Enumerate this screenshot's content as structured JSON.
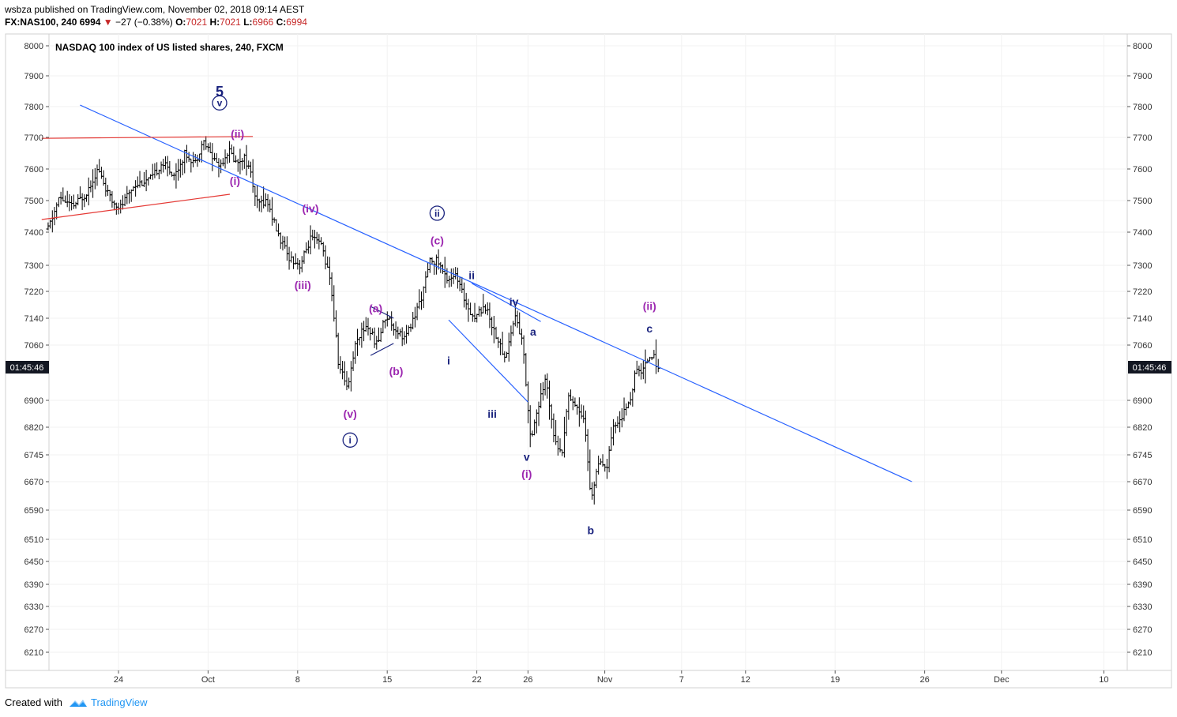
{
  "header": {
    "publisher_line": "wsbza published on TradingView.com, November 02, 2018 09:14 AEST",
    "symbol_interval": "FX:NAS100, 240",
    "last_price": "6994",
    "change": "−27 (−0.38%)",
    "open_label": "O:",
    "open_value": "7021",
    "high_label": "H:",
    "high_value": "7021",
    "low_label": "L:",
    "low_value": "6966",
    "close_label": "C:",
    "close_value": "6994"
  },
  "footer": {
    "created_with": "Created with",
    "brand": "TradingView"
  },
  "colors": {
    "bars": "#000000",
    "trendline": "#2962ff",
    "resistance": "#e53935",
    "wave_purple": "#9c27b0",
    "wave_navy": "#1a237e",
    "countdown_bg": "#131722",
    "grid": "#f2f2f2"
  },
  "chart_data": {
    "type": "ohlc",
    "title": "NASDAQ 100 index of US listed shares, 240, FXCM",
    "countdown_label": "01:45:46",
    "y_ticks": [
      6210,
      6270,
      6330,
      6390,
      6450,
      6510,
      6590,
      6670,
      6745,
      6820,
      6900,
      7060,
      7140,
      7220,
      7300,
      7400,
      7500,
      7600,
      7700,
      7800,
      7900,
      8000
    ],
    "ylim": [
      6180,
      8020
    ],
    "x_ticks": [
      {
        "label": "24",
        "d": 0
      },
      {
        "label": "Oct",
        "d": 7
      },
      {
        "label": "8",
        "d": 14
      },
      {
        "label": "15",
        "d": 21
      },
      {
        "label": "22",
        "d": 28
      },
      {
        "label": "26",
        "d": 32
      },
      {
        "label": "Nov",
        "d": 38
      },
      {
        "label": "7",
        "d": 44
      },
      {
        "label": "12",
        "d": 49
      },
      {
        "label": "19",
        "d": 56
      },
      {
        "label": "26",
        "d": 63
      },
      {
        "label": "Dec",
        "d": 69
      },
      {
        "label": "10",
        "d": 77
      }
    ],
    "x_axis_note": "x values are days since Sep 24, 2018",
    "price_path": [
      {
        "d": -5.5,
        "p": 7410
      },
      {
        "d": -4.6,
        "p": 7510
      },
      {
        "d": -3.6,
        "p": 7480
      },
      {
        "d": -2.6,
        "p": 7520
      },
      {
        "d": -1.6,
        "p": 7600
      },
      {
        "d": -0.6,
        "p": 7500
      },
      {
        "d": 0.2,
        "p": 7480
      },
      {
        "d": 1.2,
        "p": 7550
      },
      {
        "d": 2.6,
        "p": 7570
      },
      {
        "d": 3.4,
        "p": 7620
      },
      {
        "d": 4.4,
        "p": 7580
      },
      {
        "d": 5.2,
        "p": 7650
      },
      {
        "d": 6.0,
        "p": 7620
      },
      {
        "d": 6.6,
        "p": 7690
      },
      {
        "d": 7.3,
        "p": 7640
      },
      {
        "d": 7.9,
        "p": 7610
      },
      {
        "d": 8.6,
        "p": 7660
      },
      {
        "d": 9.2,
        "p": 7620
      },
      {
        "d": 9.8,
        "p": 7640
      },
      {
        "d": 10.3,
        "p": 7590
      },
      {
        "d": 10.8,
        "p": 7490
      },
      {
        "d": 11.6,
        "p": 7500
      },
      {
        "d": 12.4,
        "p": 7400
      },
      {
        "d": 13.2,
        "p": 7330
      },
      {
        "d": 14.2,
        "p": 7300
      },
      {
        "d": 15.0,
        "p": 7380
      },
      {
        "d": 15.9,
        "p": 7360
      },
      {
        "d": 16.6,
        "p": 7240
      },
      {
        "d": 17.2,
        "p": 7000
      },
      {
        "d": 17.9,
        "p": 6940
      },
      {
        "d": 18.6,
        "p": 7080
      },
      {
        "d": 19.4,
        "p": 7120
      },
      {
        "d": 20.2,
        "p": 7060
      },
      {
        "d": 20.9,
        "p": 7150
      },
      {
        "d": 21.6,
        "p": 7110
      },
      {
        "d": 22.4,
        "p": 7080
      },
      {
        "d": 23.1,
        "p": 7140
      },
      {
        "d": 23.8,
        "p": 7220
      },
      {
        "d": 24.4,
        "p": 7320
      },
      {
        "d": 25.0,
        "p": 7310
      },
      {
        "d": 25.6,
        "p": 7260
      },
      {
        "d": 26.3,
        "p": 7270
      },
      {
        "d": 27.0,
        "p": 7200
      },
      {
        "d": 27.8,
        "p": 7140
      },
      {
        "d": 28.6,
        "p": 7180
      },
      {
        "d": 29.4,
        "p": 7100
      },
      {
        "d": 30.2,
        "p": 7020
      },
      {
        "d": 31.0,
        "p": 7150
      },
      {
        "d": 31.6,
        "p": 7060
      },
      {
        "d": 32.2,
        "p": 6790
      },
      {
        "d": 32.8,
        "p": 6880
      },
      {
        "d": 33.4,
        "p": 6960
      },
      {
        "d": 34.0,
        "p": 6810
      },
      {
        "d": 34.6,
        "p": 6740
      },
      {
        "d": 35.2,
        "p": 6920
      },
      {
        "d": 35.8,
        "p": 6880
      },
      {
        "d": 36.4,
        "p": 6850
      },
      {
        "d": 36.9,
        "p": 6620
      },
      {
        "d": 37.5,
        "p": 6720
      },
      {
        "d": 38.1,
        "p": 6700
      },
      {
        "d": 38.7,
        "p": 6820
      },
      {
        "d": 39.3,
        "p": 6850
      },
      {
        "d": 39.9,
        "p": 6890
      },
      {
        "d": 40.4,
        "p": 6980
      },
      {
        "d": 41.0,
        "p": 6990
      },
      {
        "d": 41.6,
        "p": 7040
      },
      {
        "d": 42.2,
        "p": 6994
      }
    ],
    "drawings": [
      {
        "name": "long-downtrend-line",
        "color": "trendline",
        "from": {
          "d": -3.0,
          "p": 7805
        },
        "to": {
          "d": 62.0,
          "p": 6670
        }
      },
      {
        "name": "resistance-line-top",
        "color": "resistance",
        "from": {
          "d": -6.0,
          "p": 7697
        },
        "to": {
          "d": 10.5,
          "p": 7703
        }
      },
      {
        "name": "resistance-line-low",
        "color": "resistance",
        "from": {
          "d": -6.0,
          "p": 7440
        },
        "to": {
          "d": 8.7,
          "p": 7520
        }
      },
      {
        "name": "wedge-upper-line",
        "color": "trendline",
        "from": {
          "d": 27.6,
          "p": 7245
        },
        "to": {
          "d": 33.0,
          "p": 7130
        }
      },
      {
        "name": "wedge-lower-line",
        "color": "trendline",
        "from": {
          "d": 25.8,
          "p": 7135
        },
        "to": {
          "d": 32.0,
          "p": 6895
        }
      },
      {
        "name": "triangle-upper-line",
        "color": "wave_navy",
        "from": {
          "d": 19.7,
          "p": 7175
        },
        "to": {
          "d": 21.5,
          "p": 7140
        }
      },
      {
        "name": "triangle-lower-line",
        "color": "wave_navy",
        "from": {
          "d": 19.7,
          "p": 7030
        },
        "to": {
          "d": 21.5,
          "p": 7065
        }
      }
    ],
    "annotations": [
      {
        "text": "5",
        "d": 7.9,
        "p": 7850,
        "color": "wave_navy",
        "circled": false,
        "size": 18
      },
      {
        "text": "v",
        "d": 7.9,
        "p": 7812,
        "color": "wave_navy",
        "circled": true,
        "size": 12
      },
      {
        "text": "(ii)",
        "d": 9.3,
        "p": 7712,
        "color": "wave_purple",
        "circled": false,
        "size": 14
      },
      {
        "text": "(i)",
        "d": 9.1,
        "p": 7562,
        "color": "wave_purple",
        "circled": false,
        "size": 14
      },
      {
        "text": "(iv)",
        "d": 15.0,
        "p": 7475,
        "color": "wave_purple",
        "circled": false,
        "size": 14
      },
      {
        "text": "(iii)",
        "d": 14.4,
        "p": 7240,
        "color": "wave_purple",
        "circled": false,
        "size": 14
      },
      {
        "text": "(a)",
        "d": 20.1,
        "p": 7170,
        "color": "wave_purple",
        "circled": false,
        "size": 14
      },
      {
        "text": "(b)",
        "d": 21.7,
        "p": 6985,
        "color": "wave_purple",
        "circled": false,
        "size": 14
      },
      {
        "text": "(v)",
        "d": 18.1,
        "p": 6860,
        "color": "wave_purple",
        "circled": false,
        "size": 14
      },
      {
        "text": "i",
        "d": 18.1,
        "p": 6785,
        "color": "wave_navy",
        "circled": true,
        "size": 12
      },
      {
        "text": "ii",
        "d": 24.9,
        "p": 7460,
        "color": "wave_navy",
        "circled": true,
        "size": 12
      },
      {
        "text": "(c)",
        "d": 24.9,
        "p": 7375,
        "color": "wave_purple",
        "circled": false,
        "size": 14
      },
      {
        "text": "ii",
        "d": 27.6,
        "p": 7270,
        "color": "wave_navy",
        "circled": false,
        "size": 14
      },
      {
        "text": "iv",
        "d": 30.9,
        "p": 7190,
        "color": "wave_navy",
        "circled": false,
        "size": 14
      },
      {
        "text": "i",
        "d": 25.8,
        "p": 7015,
        "color": "wave_navy",
        "circled": false,
        "size": 14
      },
      {
        "text": "iii",
        "d": 29.2,
        "p": 6860,
        "color": "wave_navy",
        "circled": false,
        "size": 14
      },
      {
        "text": "a",
        "d": 32.4,
        "p": 7100,
        "color": "wave_navy",
        "circled": false,
        "size": 14
      },
      {
        "text": "v",
        "d": 31.9,
        "p": 6740,
        "color": "wave_navy",
        "circled": false,
        "size": 14
      },
      {
        "text": "(i)",
        "d": 31.9,
        "p": 6692,
        "color": "wave_purple",
        "circled": false,
        "size": 14
      },
      {
        "text": "b",
        "d": 36.9,
        "p": 6535,
        "color": "wave_navy",
        "circled": false,
        "size": 14
      },
      {
        "text": "(ii)",
        "d": 41.5,
        "p": 7177,
        "color": "wave_purple",
        "circled": false,
        "size": 14
      },
      {
        "text": "c",
        "d": 41.5,
        "p": 7110,
        "color": "wave_navy",
        "circled": false,
        "size": 14
      }
    ]
  }
}
